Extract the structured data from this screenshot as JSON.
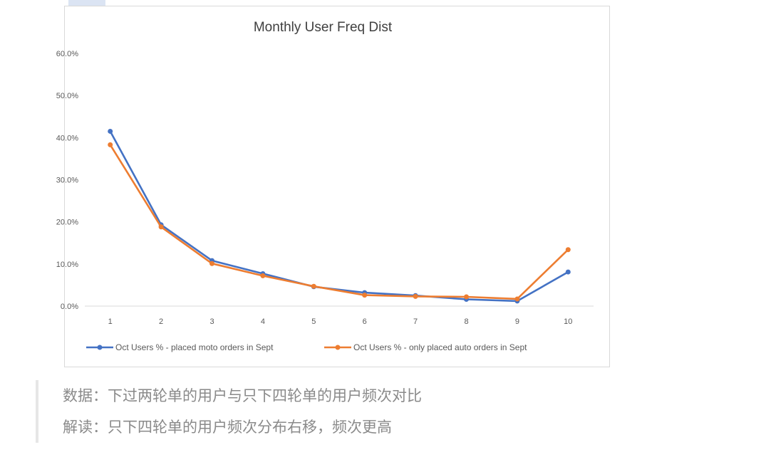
{
  "chart_data": {
    "type": "line",
    "title": "Monthly User Freq Dist",
    "x": [
      "1",
      "2",
      "3",
      "4",
      "5",
      "6",
      "7",
      "8",
      "9",
      "10"
    ],
    "ylim": [
      0,
      60
    ],
    "y_ticks": [
      "0.0%",
      "10.0%",
      "20.0%",
      "30.0%",
      "40.0%",
      "50.0%",
      "60.0%"
    ],
    "grid": false,
    "legend_position": "bottom",
    "series": [
      {
        "name": "Oct Users % - placed moto orders in Sept",
        "color": "#4472c4",
        "values": [
          41.5,
          19.3,
          10.8,
          7.7,
          4.6,
          3.2,
          2.5,
          1.6,
          1.2,
          8.1
        ]
      },
      {
        "name": "Oct Users % - only placed auto orders in Sept",
        "color": "#ed7d31",
        "values": [
          38.3,
          18.8,
          10.1,
          7.2,
          4.7,
          2.6,
          2.3,
          2.2,
          1.7,
          13.4
        ]
      }
    ]
  },
  "notes": [
    {
      "label": "数据：",
      "text": "下过两轮单的用户与只下四轮单的用户频次对比"
    },
    {
      "label": "解读：",
      "text": "只下四轮单的用户频次分布右移，频次更高"
    }
  ]
}
